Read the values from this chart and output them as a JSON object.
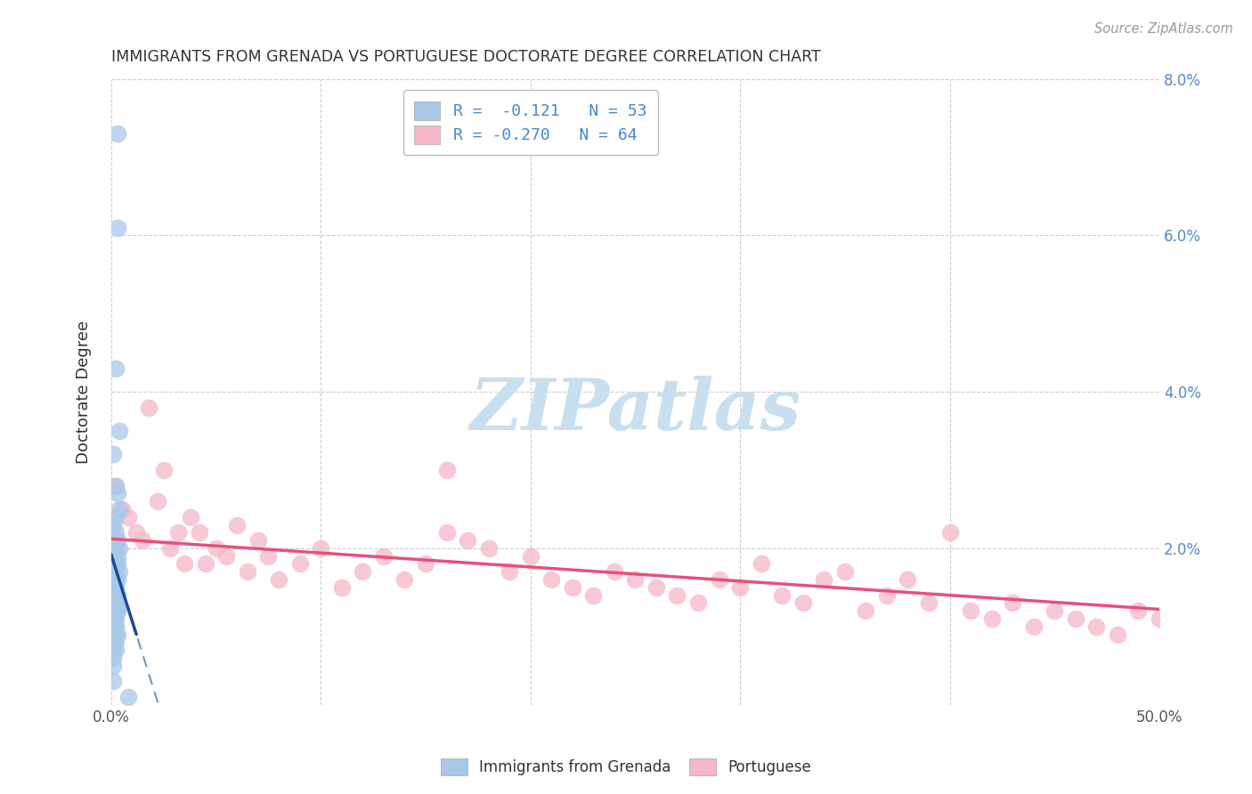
{
  "title": "IMMIGRANTS FROM GRENADA VS PORTUGUESE DOCTORATE DEGREE CORRELATION CHART",
  "source": "Source: ZipAtlas.com",
  "ylabel": "Doctorate Degree",
  "xlim": [
    0.0,
    0.5
  ],
  "ylim": [
    0.0,
    0.08
  ],
  "xtick_vals": [
    0.0,
    0.1,
    0.2,
    0.3,
    0.4,
    0.5
  ],
  "xtick_labels": [
    "0.0%",
    "",
    "",
    "",
    "",
    "50.0%"
  ],
  "ytick_vals": [
    0.0,
    0.02,
    0.04,
    0.06,
    0.08
  ],
  "ytick_labels_right": [
    "",
    "2.0%",
    "4.0%",
    "6.0%",
    "8.0%"
  ],
  "legend_top_labels": [
    "R =  -0.121   N = 53",
    "R = -0.270   N = 64"
  ],
  "legend_bottom_labels": [
    "Immigrants from Grenada",
    "Portuguese"
  ],
  "series1_color": "#a8c8e8",
  "series2_color": "#f5b8c8",
  "line1_color": "#1a4a9a",
  "line2_color": "#e8507a",
  "background_color": "#ffffff",
  "grid_color": "#c8c8c8",
  "title_color": "#333333",
  "right_tick_color": "#5588cc",
  "legend_text_color": "#4488cc",
  "watermark_text": "ZIPatlas",
  "watermark_color": "#c8dff0",
  "series1_x": [
    0.003,
    0.003,
    0.002,
    0.004,
    0.001,
    0.002,
    0.003,
    0.004,
    0.002,
    0.001,
    0.002,
    0.003,
    0.004,
    0.002,
    0.003,
    0.001,
    0.002,
    0.003,
    0.004,
    0.002,
    0.001,
    0.002,
    0.003,
    0.002,
    0.001,
    0.002,
    0.003,
    0.001,
    0.002,
    0.003,
    0.001,
    0.002,
    0.003,
    0.001,
    0.002,
    0.003,
    0.001,
    0.002,
    0.001,
    0.002,
    0.001,
    0.002,
    0.003,
    0.001,
    0.002,
    0.001,
    0.002,
    0.001,
    0.002,
    0.001,
    0.001,
    0.001,
    0.008
  ],
  "series1_y": [
    0.073,
    0.061,
    0.043,
    0.035,
    0.032,
    0.028,
    0.027,
    0.025,
    0.024,
    0.023,
    0.022,
    0.021,
    0.02,
    0.02,
    0.019,
    0.019,
    0.018,
    0.018,
    0.017,
    0.017,
    0.017,
    0.016,
    0.016,
    0.015,
    0.015,
    0.015,
    0.014,
    0.014,
    0.014,
    0.013,
    0.013,
    0.013,
    0.012,
    0.012,
    0.012,
    0.012,
    0.011,
    0.011,
    0.011,
    0.01,
    0.01,
    0.01,
    0.009,
    0.009,
    0.009,
    0.008,
    0.008,
    0.007,
    0.007,
    0.006,
    0.005,
    0.003,
    0.001
  ],
  "series2_x": [
    0.002,
    0.005,
    0.008,
    0.012,
    0.015,
    0.018,
    0.022,
    0.025,
    0.028,
    0.032,
    0.035,
    0.038,
    0.042,
    0.045,
    0.05,
    0.055,
    0.06,
    0.065,
    0.07,
    0.075,
    0.08,
    0.09,
    0.1,
    0.11,
    0.12,
    0.13,
    0.14,
    0.15,
    0.16,
    0.17,
    0.18,
    0.19,
    0.2,
    0.21,
    0.22,
    0.23,
    0.24,
    0.25,
    0.26,
    0.27,
    0.28,
    0.29,
    0.3,
    0.31,
    0.32,
    0.33,
    0.34,
    0.35,
    0.36,
    0.37,
    0.38,
    0.39,
    0.4,
    0.41,
    0.42,
    0.43,
    0.44,
    0.45,
    0.46,
    0.47,
    0.48,
    0.49,
    0.5,
    0.16
  ],
  "series2_y": [
    0.028,
    0.025,
    0.024,
    0.022,
    0.021,
    0.038,
    0.026,
    0.03,
    0.02,
    0.022,
    0.018,
    0.024,
    0.022,
    0.018,
    0.02,
    0.019,
    0.023,
    0.017,
    0.021,
    0.019,
    0.016,
    0.018,
    0.02,
    0.015,
    0.017,
    0.019,
    0.016,
    0.018,
    0.022,
    0.021,
    0.02,
    0.017,
    0.019,
    0.016,
    0.015,
    0.014,
    0.017,
    0.016,
    0.015,
    0.014,
    0.013,
    0.016,
    0.015,
    0.018,
    0.014,
    0.013,
    0.016,
    0.017,
    0.012,
    0.014,
    0.016,
    0.013,
    0.022,
    0.012,
    0.011,
    0.013,
    0.01,
    0.012,
    0.011,
    0.01,
    0.009,
    0.012,
    0.011,
    0.03
  ],
  "line1_intercept": 0.0192,
  "line1_slope": -0.85,
  "line2_intercept": 0.0212,
  "line2_slope": -0.018
}
